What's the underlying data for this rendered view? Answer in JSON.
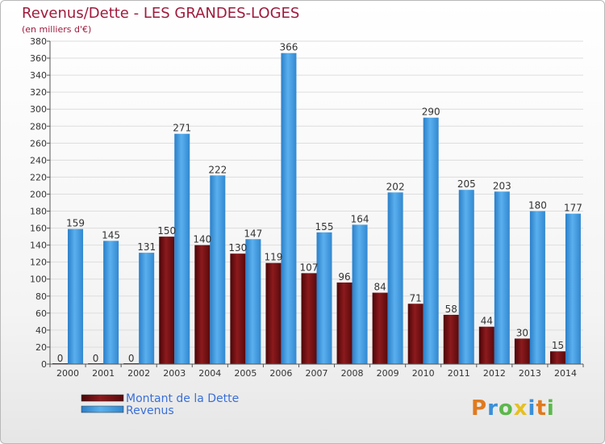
{
  "chart_data": {
    "type": "bar",
    "title": "Revenus/Dette - LES GRANDES-LOGES",
    "subtitle": "(en milliers d'€)",
    "categories": [
      "2000",
      "2001",
      "2002",
      "2003",
      "2004",
      "2005",
      "2006",
      "2007",
      "2008",
      "2009",
      "2010",
      "2011",
      "2012",
      "2013",
      "2014"
    ],
    "series": [
      {
        "name": "Montant de la Dette",
        "color": "#7a0f14",
        "values": [
          0,
          0,
          0,
          150,
          140,
          130,
          119,
          107,
          96,
          84,
          71,
          58,
          44,
          30,
          15
        ]
      },
      {
        "name": "Revenus",
        "color": "#3f9be0",
        "values": [
          159,
          145,
          131,
          271,
          222,
          147,
          366,
          155,
          164,
          202,
          290,
          205,
          203,
          180,
          177
        ]
      }
    ],
    "ylim": [
      0,
      380
    ],
    "yticks": [
      0,
      20,
      40,
      60,
      80,
      100,
      120,
      140,
      160,
      180,
      200,
      220,
      240,
      260,
      280,
      300,
      320,
      340,
      360,
      380
    ],
    "grid": true,
    "legend": "bottom-left"
  },
  "logo": {
    "text": "Proxiti",
    "letters": [
      "P",
      "r",
      "o",
      "x",
      "i",
      "t",
      "i"
    ]
  }
}
